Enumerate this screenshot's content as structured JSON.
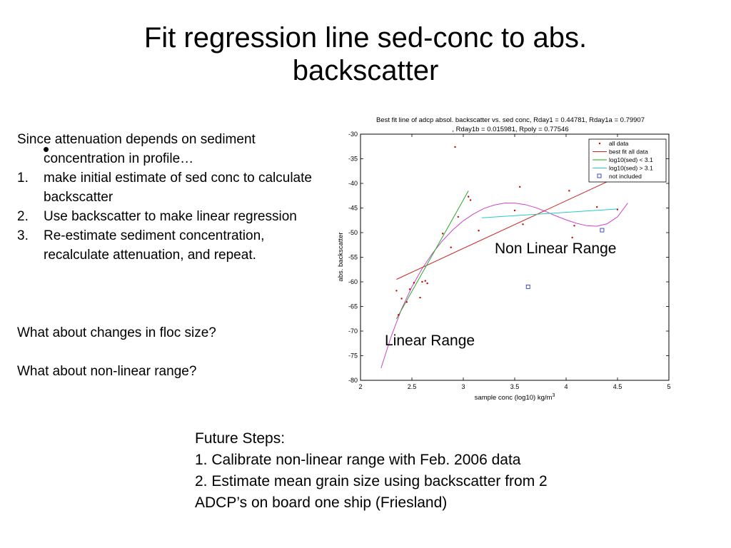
{
  "slide": {
    "title_line1": "Fit regression line sed-conc to abs.",
    "title_line2": "backscatter"
  },
  "left_panel": {
    "intro_line1": "Since attenuation depends on sediment",
    "intro_line2": "concentration in profile…",
    "steps": [
      {
        "num": "1.",
        "text": "make initial estimate of sed conc to calculate backscatter"
      },
      {
        "num": "2.",
        "text": "Use backscatter to make linear regression"
      },
      {
        "num": "3.",
        "text": "Re-estimate sediment concentration, recalculate attenuation, and repeat."
      }
    ],
    "question1": "What about changes in floc size?",
    "question2": "What about non-linear range?"
  },
  "annotations": {
    "non_linear": "Non Linear Range",
    "linear": "Linear Range"
  },
  "future": {
    "heading": "Future Steps:",
    "item1": "1.  Calibrate non-linear range with Feb. 2006 data",
    "item2": "2.   Estimate mean grain size using backscatter from 2",
    "item2_cont": "ADCP’s on board one ship (Friesland)"
  },
  "chart_data": {
    "type": "scatter",
    "title_line1": "Best fit line of adcp absol. backscatter vs. sed conc, Rday1 = 0.44781, Rday1a = 0.79907",
    "title_line2": ", Rday1b = 0.015981, Rpoly = 0.77546",
    "xlabel": "sample conc (log10) kg/m",
    "xlabel_sup": "3",
    "ylabel": "abs. backscatter",
    "xlim": [
      2,
      5
    ],
    "ylim": [
      -80,
      -30
    ],
    "xticks": [
      "2",
      "2.5",
      "3",
      "3.5",
      "4",
      "4.5",
      "5"
    ],
    "yticks": [
      "-30",
      "-35",
      "-40",
      "-45",
      "-50",
      "-55",
      "-60",
      "-65",
      "-70",
      "-75",
      "-80"
    ],
    "legend": [
      "all data",
      "best fit all data",
      "log10(sed) < 3.1",
      "log10(sed) > 3.1",
      "not included"
    ],
    "colors": {
      "all_data": "#cc0000",
      "best_fit": "#cc2222",
      "below": "#22aa22",
      "above": "#22cccc",
      "poly": "#cc44cc",
      "not_included": "#3333cc"
    },
    "all_data": [
      [
        2.35,
        -61.8
      ],
      [
        2.37,
        -66.7
      ],
      [
        2.4,
        -63.4
      ],
      [
        2.45,
        -64.1
      ],
      [
        2.48,
        -61.5
      ],
      [
        2.52,
        -60.2
      ],
      [
        2.58,
        -63.2
      ],
      [
        2.6,
        -60.0
      ],
      [
        2.63,
        -59.8
      ],
      [
        2.65,
        -60.3
      ],
      [
        2.8,
        -50.2
      ],
      [
        2.88,
        -53.0
      ],
      [
        2.92,
        -32.6
      ],
      [
        2.95,
        -46.8
      ],
      [
        3.05,
        -42.7
      ],
      [
        3.07,
        -43.4
      ],
      [
        3.15,
        -49.6
      ],
      [
        3.5,
        -45.5
      ],
      [
        3.55,
        -40.7
      ],
      [
        3.58,
        -48.3
      ],
      [
        4.03,
        -41.5
      ],
      [
        4.06,
        -51.0
      ],
      [
        4.08,
        -48.6
      ],
      [
        4.3,
        -44.8
      ],
      [
        4.5,
        -45.3
      ]
    ],
    "not_included": [
      [
        3.63,
        -61.0
      ],
      [
        4.35,
        -49.5
      ]
    ],
    "best_fit_all": [
      [
        2.35,
        -59.5
      ],
      [
        4.5,
        -38.7
      ]
    ],
    "fit_below": [
      [
        2.35,
        -67.5
      ],
      [
        3.05,
        -41.5
      ]
    ],
    "fit_above": [
      [
        3.18,
        -47.0
      ],
      [
        4.5,
        -45.2
      ]
    ],
    "poly_fit": [
      [
        2.2,
        -77.5
      ],
      [
        2.3,
        -71.0
      ],
      [
        2.4,
        -65.5
      ],
      [
        2.5,
        -61.0
      ],
      [
        2.6,
        -57.3
      ],
      [
        2.7,
        -54.2
      ],
      [
        2.8,
        -51.6
      ],
      [
        2.9,
        -49.4
      ],
      [
        3.0,
        -47.6
      ],
      [
        3.1,
        -46.2
      ],
      [
        3.2,
        -45.1
      ],
      [
        3.3,
        -44.4
      ],
      [
        3.4,
        -44.0
      ],
      [
        3.5,
        -44.0
      ],
      [
        3.6,
        -44.3
      ],
      [
        3.7,
        -44.9
      ],
      [
        3.8,
        -45.7
      ],
      [
        3.9,
        -46.6
      ],
      [
        4.0,
        -47.4
      ],
      [
        4.1,
        -48.1
      ],
      [
        4.2,
        -48.6
      ],
      [
        4.3,
        -48.7
      ],
      [
        4.4,
        -48.2
      ],
      [
        4.5,
        -46.8
      ],
      [
        4.6,
        -44.0
      ]
    ]
  }
}
